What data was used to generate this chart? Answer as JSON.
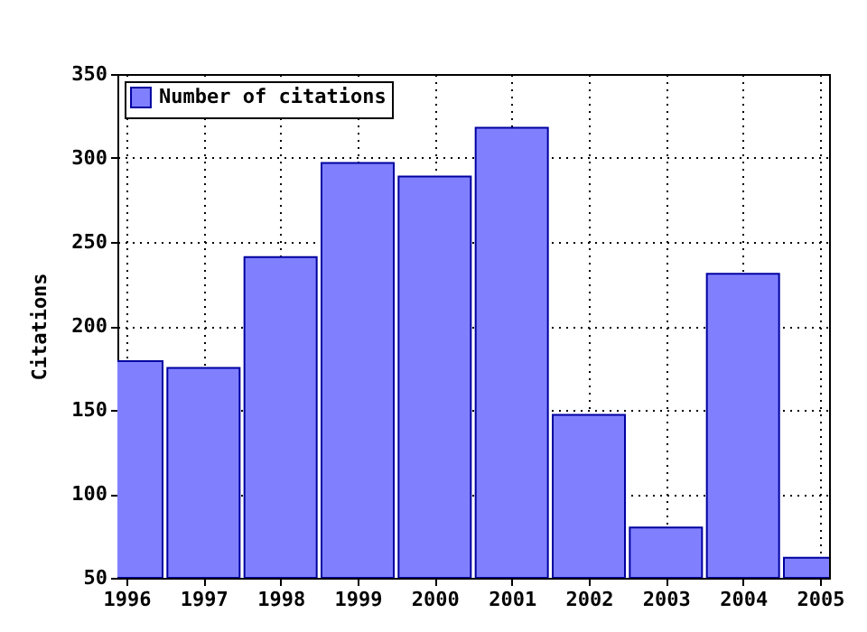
{
  "chart_data": {
    "type": "bar",
    "ylabel": "Citations",
    "x": [
      1996,
      1997,
      1998,
      1999,
      2000,
      2001,
      2002,
      2003,
      2004,
      2005
    ],
    "series": [
      {
        "name": "Number of citations",
        "color": "#8080ff",
        "values": [
          179,
          175,
          241,
          297,
          289,
          318,
          147,
          80,
          231,
          62
        ]
      }
    ],
    "xlim": [
      1996,
      2005
    ],
    "xticks": [
      1996,
      1997,
      1998,
      1999,
      2000,
      2001,
      2002,
      2003,
      2004,
      2005
    ],
    "ylim": [
      50,
      350
    ],
    "yticks": [
      50,
      100,
      150,
      200,
      250,
      300,
      350
    ],
    "grid": true,
    "legend": "top left"
  }
}
